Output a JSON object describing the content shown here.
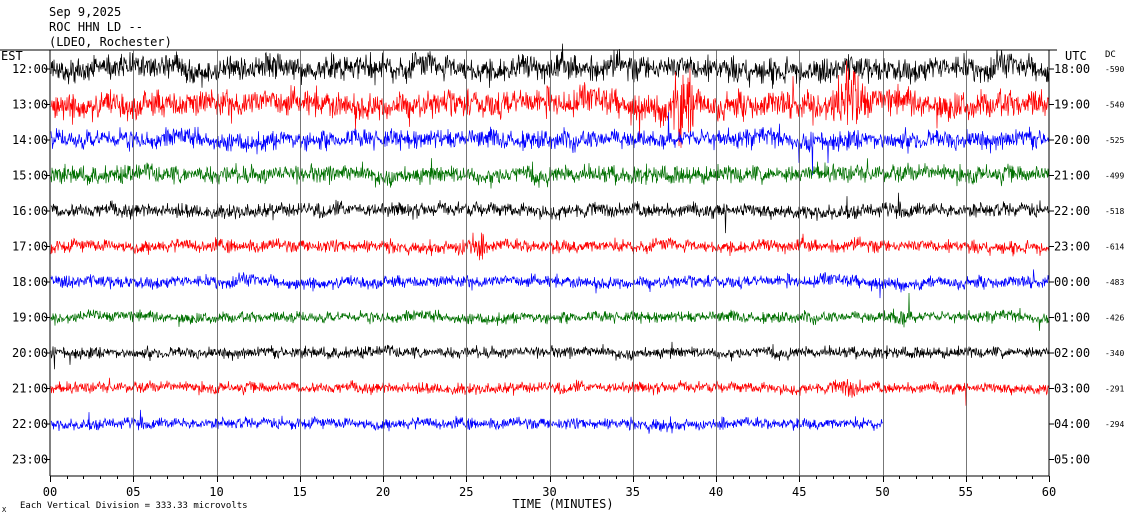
{
  "chart_data": {
    "type": "line",
    "title_lines": [
      "Sep 9,2025",
      "ROC HHN LD --",
      "(LDEO, Rochester)"
    ],
    "left_axis_label": "EST",
    "right_axis_label": "UTC",
    "dc_label": "DC",
    "xlabel": "TIME (MINUTES)",
    "xlim": [
      0,
      60
    ],
    "x_ticks": [
      "00",
      "05",
      "10",
      "15",
      "20",
      "25",
      "30",
      "35",
      "40",
      "45",
      "50",
      "55",
      "60"
    ],
    "footer": "Each Vertical Division =  333.33 microvolts",
    "footer_mark": "X",
    "trace_colors": [
      "#000000",
      "#ff0000",
      "#0000ff",
      "#007000"
    ],
    "rows": [
      {
        "est": "12:00",
        "utc": "18:00",
        "dc": "-590",
        "end_minute": 60,
        "amplitude": 1.6,
        "events": []
      },
      {
        "est": "13:00",
        "utc": "19:00",
        "dc": "-540",
        "end_minute": 60,
        "amplitude": 1.8,
        "events": [
          {
            "minute": 38,
            "size": 2.5
          },
          {
            "minute": 48,
            "size": 2.2
          }
        ]
      },
      {
        "est": "14:00",
        "utc": "20:00",
        "dc": "-525",
        "end_minute": 60,
        "amplitude": 1.2,
        "events": []
      },
      {
        "est": "15:00",
        "utc": "21:00",
        "dc": "-499",
        "end_minute": 60,
        "amplitude": 1.1,
        "events": []
      },
      {
        "est": "16:00",
        "utc": "22:00",
        "dc": "-518",
        "end_minute": 60,
        "amplitude": 0.9,
        "events": []
      },
      {
        "est": "17:00",
        "utc": "23:00",
        "dc": "-614",
        "end_minute": 60,
        "amplitude": 0.8,
        "events": [
          {
            "minute": 25.5,
            "size": 1.3
          }
        ]
      },
      {
        "est": "18:00",
        "utc": "00:00",
        "dc": "-483",
        "end_minute": 60,
        "amplitude": 0.8,
        "events": []
      },
      {
        "est": "19:00",
        "utc": "01:00",
        "dc": "-426",
        "end_minute": 60,
        "amplitude": 0.7,
        "events": [
          {
            "minute": 51,
            "size": 1.0
          }
        ]
      },
      {
        "est": "20:00",
        "utc": "02:00",
        "dc": "-340",
        "end_minute": 60,
        "amplitude": 0.7,
        "events": []
      },
      {
        "est": "21:00",
        "utc": "03:00",
        "dc": "-291",
        "end_minute": 60,
        "amplitude": 0.7,
        "events": [
          {
            "minute": 48,
            "size": 1.0
          }
        ]
      },
      {
        "est": "22:00",
        "utc": "04:00",
        "dc": "-294",
        "end_minute": 50,
        "amplitude": 0.7,
        "events": [
          {
            "minute": 36.5,
            "size": 0.5
          }
        ]
      },
      {
        "est": "23:00",
        "utc": "05:00",
        "dc": "",
        "end_minute": 0,
        "amplitude": 0,
        "events": []
      }
    ]
  }
}
